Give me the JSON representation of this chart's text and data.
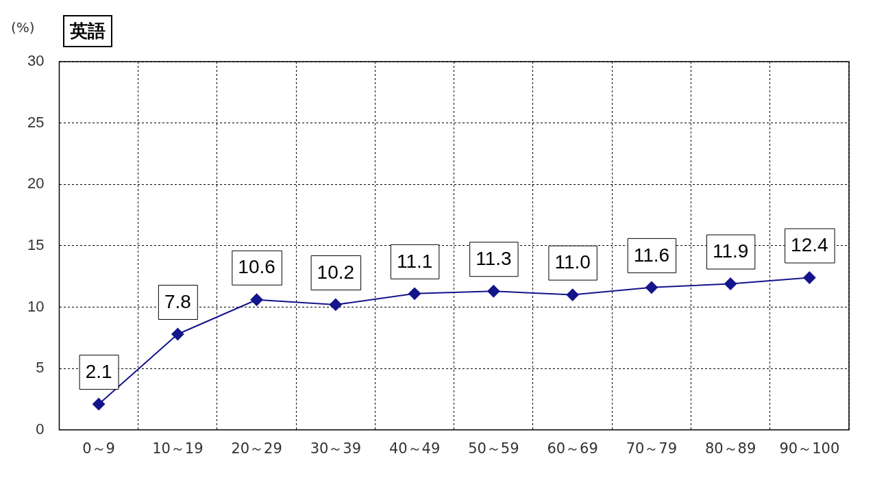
{
  "chart_data": {
    "type": "line",
    "title": "英語",
    "ylabel": "(%)",
    "categories": [
      "0～9",
      "10～19",
      "20～29",
      "30～39",
      "40～49",
      "50～59",
      "60～69",
      "70～79",
      "80～89",
      "90～100"
    ],
    "series": [
      {
        "color": "#14148c",
        "values": [
          2.1,
          7.8,
          10.6,
          10.2,
          11.1,
          11.3,
          11.0,
          11.6,
          11.9,
          12.4
        ],
        "value_labels": [
          "2.1",
          "7.8",
          "10.6",
          "10.2",
          "11.1",
          "11.3",
          "11.0",
          "11.6",
          "11.9",
          "12.4"
        ]
      }
    ],
    "ylim": [
      0,
      30
    ],
    "yticks": [
      0,
      5,
      10,
      15,
      20,
      25,
      30
    ],
    "grid": true,
    "legend": false,
    "marker": "diamond",
    "line_style": "solid"
  }
}
